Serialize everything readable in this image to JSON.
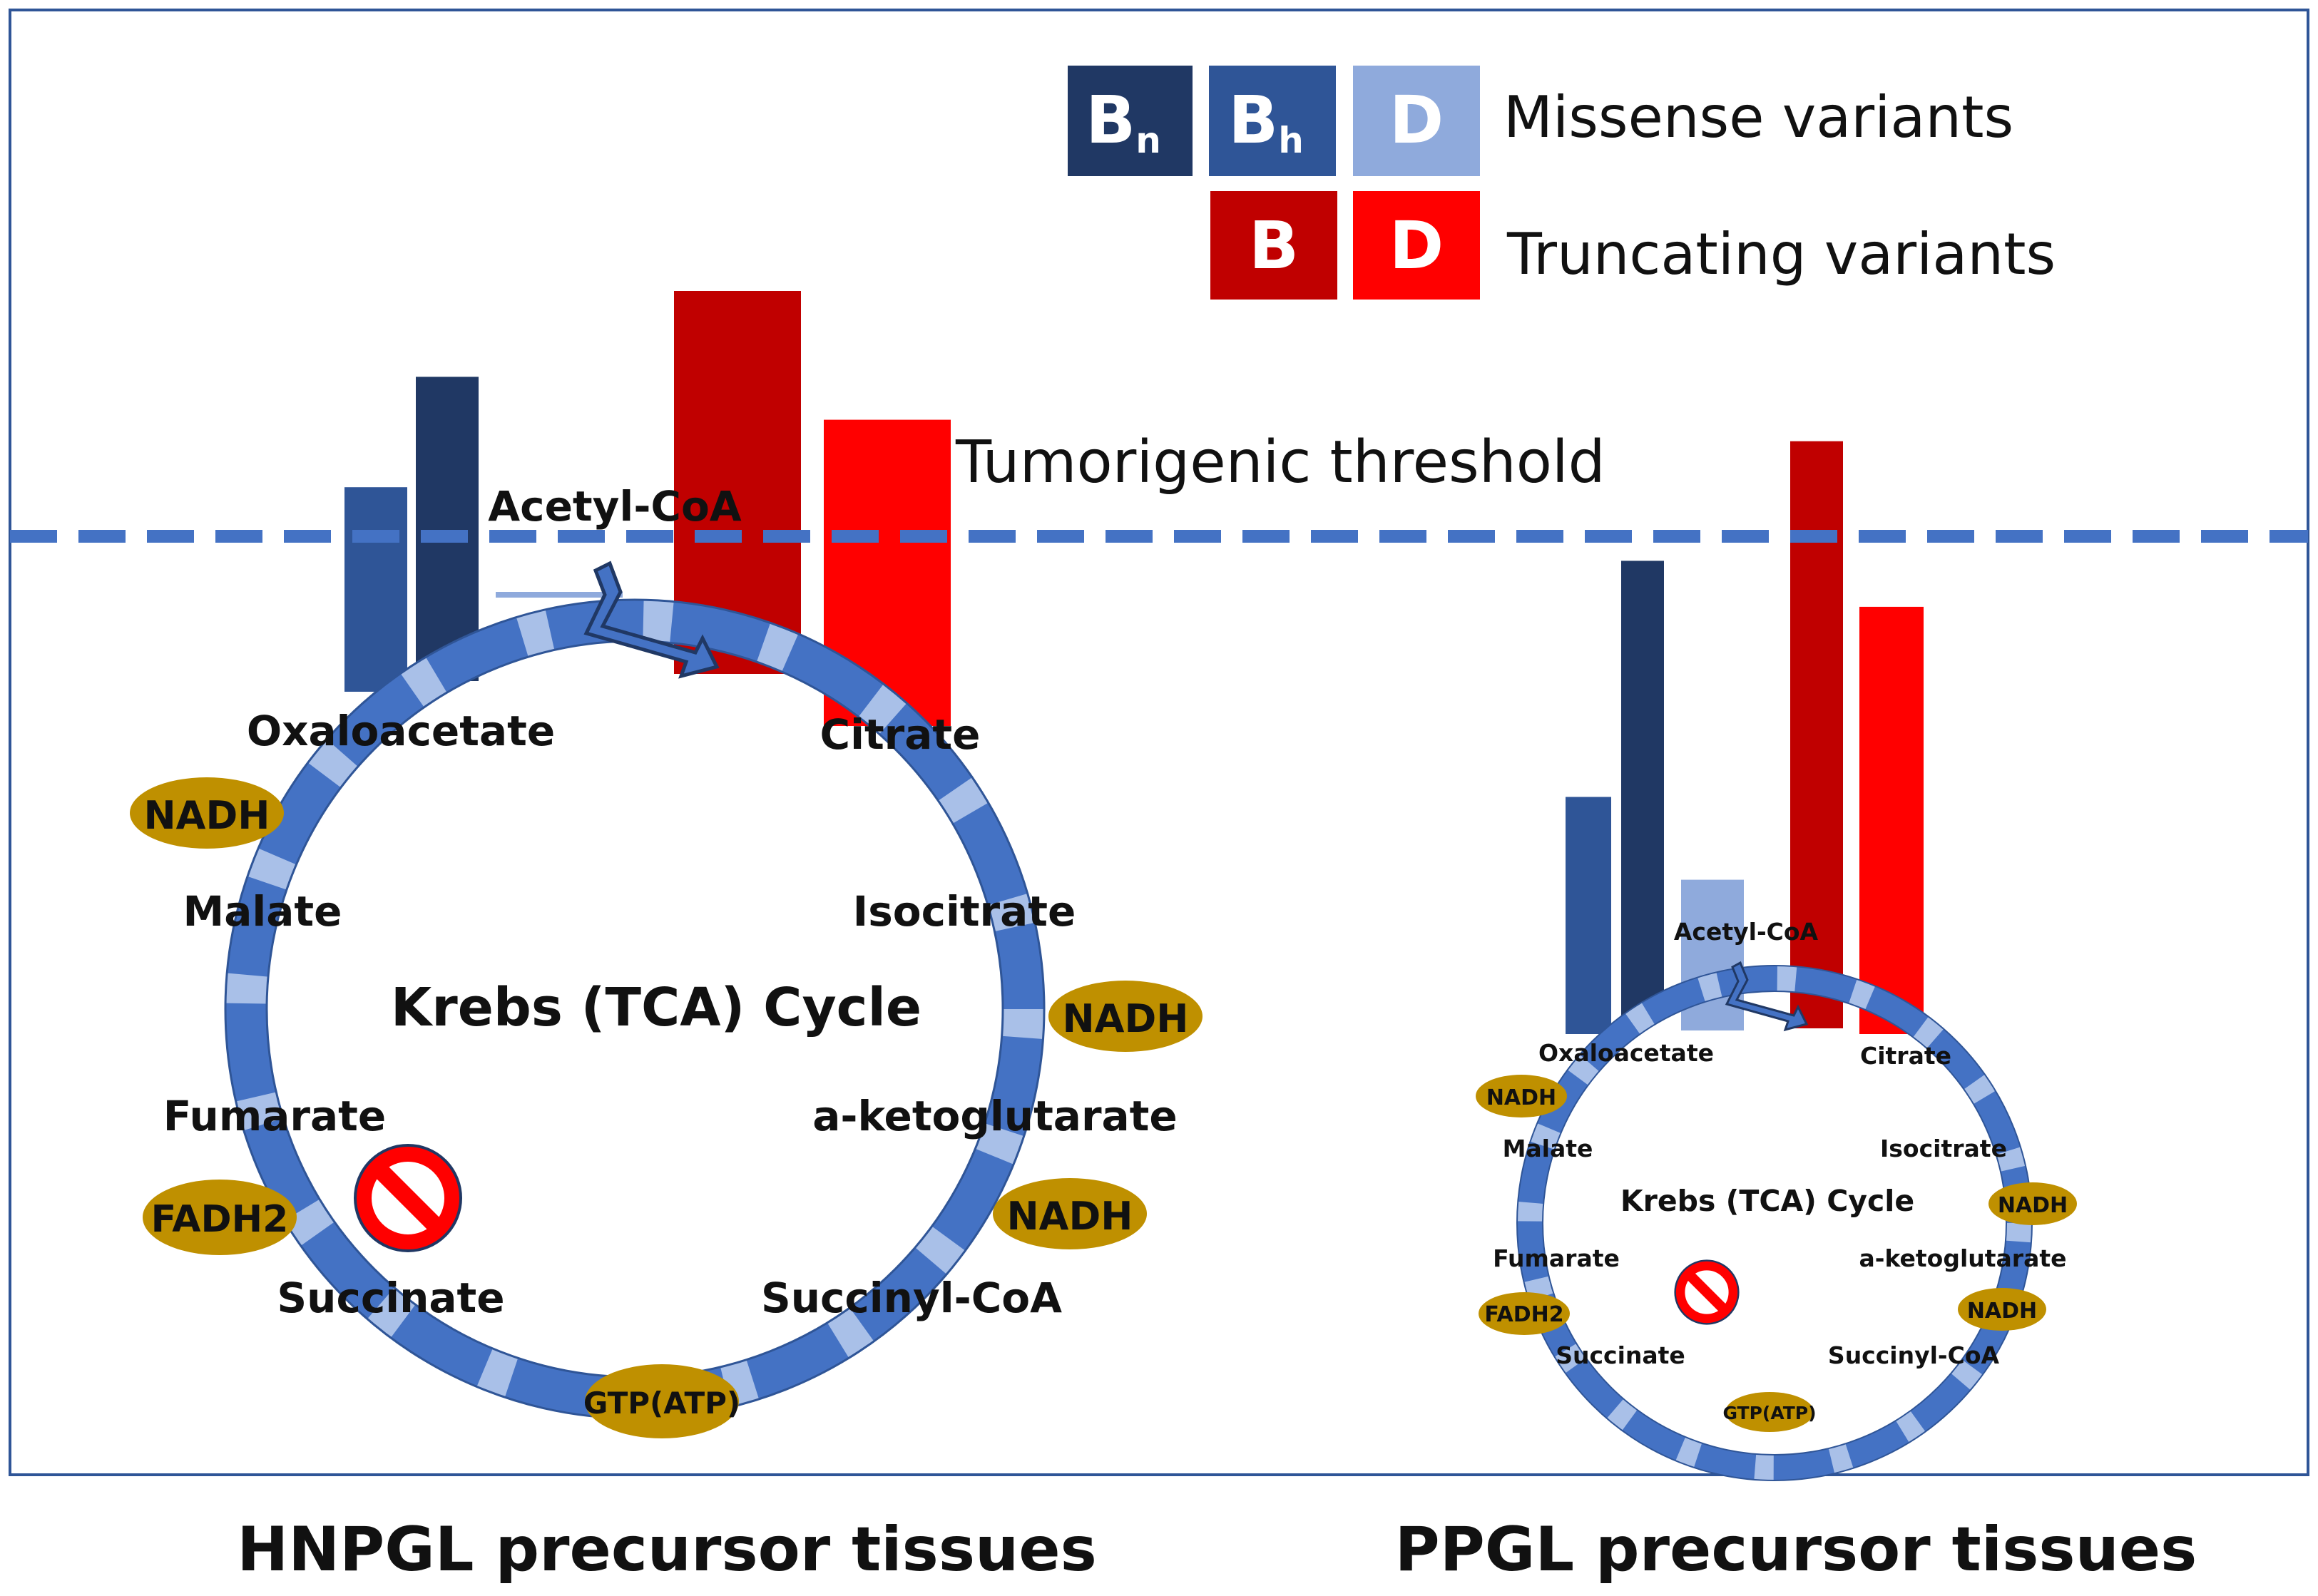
{
  "legend": {
    "missense": {
      "label": "Missense variants",
      "boxes": [
        {
          "letter": "B",
          "subscript": "n",
          "color": "#203864"
        },
        {
          "letter": "B",
          "subscript": "h",
          "color": "#2f5597"
        },
        {
          "letter": "D",
          "subscript": "",
          "color": "#8faadc"
        }
      ]
    },
    "truncating": {
      "label": "Truncating variants",
      "boxes": [
        {
          "letter": "B",
          "subscript": "",
          "color": "#c00000"
        },
        {
          "letter": "D",
          "subscript": "",
          "color": "#ff0000"
        }
      ]
    }
  },
  "threshold": {
    "label": "Tumorigenic threshold",
    "level": 0.5
  },
  "panels": [
    {
      "title": "HNPGL precursor tissues",
      "bars": [
        {
          "series": "missense-Bh",
          "value": 0.66
        },
        {
          "series": "missense-Bn",
          "value": 1.02
        },
        {
          "series": "missense-D",
          "value": 0.3
        },
        {
          "series": "truncating-B",
          "value": 1.3
        },
        {
          "series": "truncating-D",
          "value": 0.88
        }
      ]
    },
    {
      "title": "PPGL precursor tissues",
      "bars": [
        {
          "series": "missense-Bh",
          "value": -0.35
        },
        {
          "series": "missense-Bn",
          "value": 0.42
        },
        {
          "series": "missense-D",
          "value": -0.62
        },
        {
          "series": "truncating-B",
          "value": 0.81
        },
        {
          "series": "truncating-D",
          "value": 0.27
        }
      ]
    }
  ],
  "cycle": {
    "title": "Krebs (TCA)  Cycle",
    "acetyl": "Acetyl-CoA",
    "metabolites": {
      "oxaloacetate": "Oxaloacetate",
      "citrate": "Citrate",
      "isocitrate": "Isocitrate",
      "ketoglutarate": "a-ketoglutarate",
      "succinyl": "Succinyl-CoA",
      "succinate": "Succinate",
      "fumarate": "Fumarate",
      "malate": "Malate"
    },
    "cofactors": {
      "nadh1": "NADH",
      "nadh2": "NADH",
      "nadh3": "NADH",
      "fadh2": "FADH2",
      "gtp": "GTP(ATP)"
    },
    "blocked_step": "Succinate"
  },
  "colors": {
    "missense_Bn": "#203864",
    "missense_Bh": "#2f5597",
    "missense_D": "#8faadc",
    "truncating_B": "#c00000",
    "truncating_D": "#ff0000",
    "ring": "#4472c4",
    "ring_light": "#a9c0e8",
    "cofactor": "#bf9000",
    "threshold_line": "#4472c4",
    "frame": "#2f5597"
  }
}
